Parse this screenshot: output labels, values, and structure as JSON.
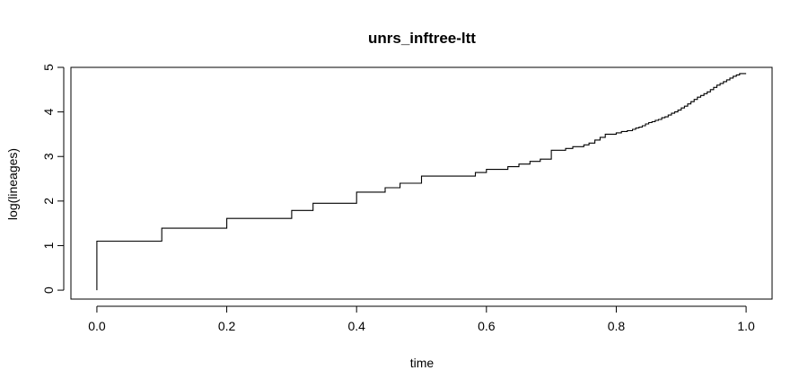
{
  "chart_data": {
    "type": "line",
    "title": "unrs_inftree-ltt",
    "xlabel": "time",
    "ylabel": "log(lineages)",
    "xlim": [
      -0.04,
      1.04
    ],
    "ylim": [
      -0.2,
      5.0
    ],
    "xticks": [
      0.0,
      0.2,
      0.4,
      0.6,
      0.8,
      1.0
    ],
    "xtick_labels": [
      "0.0",
      "0.2",
      "0.4",
      "0.6",
      "0.8",
      "1.0"
    ],
    "yticks": [
      0,
      1,
      2,
      3,
      4,
      5
    ],
    "ytick_labels": [
      "0",
      "1",
      "2",
      "3",
      "4",
      "5"
    ],
    "grid": false,
    "step": true,
    "series": [
      {
        "x": [
          0.0,
          0.0,
          0.1,
          0.2,
          0.3,
          0.333,
          0.4,
          0.444,
          0.467,
          0.5,
          0.5,
          0.533,
          0.583,
          0.6,
          0.633,
          0.65,
          0.667,
          0.683,
          0.7,
          0.7,
          0.722,
          0.733,
          0.75,
          0.758,
          0.767,
          0.775,
          0.783,
          0.8,
          0.808,
          0.817,
          0.825,
          0.83,
          0.835,
          0.84,
          0.845,
          0.85,
          0.855,
          0.86,
          0.865,
          0.87,
          0.875,
          0.88,
          0.885,
          0.89,
          0.895,
          0.9,
          0.905,
          0.91,
          0.915,
          0.92,
          0.925,
          0.93,
          0.935,
          0.94,
          0.945,
          0.95,
          0.955,
          0.96,
          0.965,
          0.97,
          0.975,
          0.98,
          0.985,
          0.99,
          1.0
        ],
        "y": [
          0.0,
          1.1,
          1.39,
          1.61,
          1.79,
          1.95,
          2.2,
          2.3,
          2.4,
          2.48,
          2.56,
          2.56,
          2.64,
          2.71,
          2.77,
          2.83,
          2.89,
          2.94,
          3.04,
          3.14,
          3.18,
          3.22,
          3.26,
          3.3,
          3.37,
          3.43,
          3.5,
          3.53,
          3.56,
          3.58,
          3.61,
          3.64,
          3.66,
          3.69,
          3.73,
          3.76,
          3.78,
          3.81,
          3.83,
          3.87,
          3.89,
          3.93,
          3.97,
          4.0,
          4.04,
          4.09,
          4.13,
          4.18,
          4.23,
          4.28,
          4.33,
          4.37,
          4.41,
          4.45,
          4.5,
          4.55,
          4.6,
          4.64,
          4.68,
          4.72,
          4.76,
          4.8,
          4.83,
          4.86,
          4.86
        ]
      }
    ]
  }
}
